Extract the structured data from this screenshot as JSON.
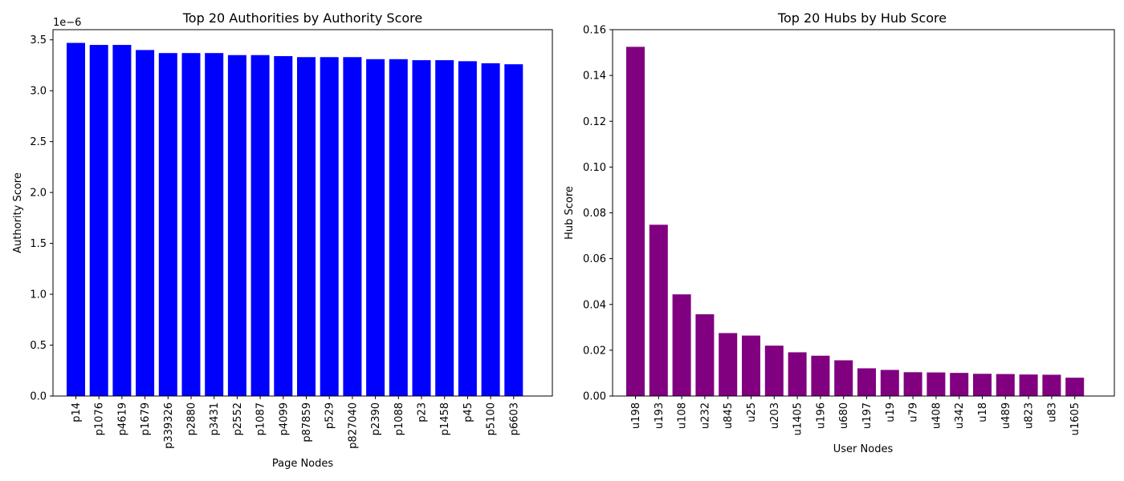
{
  "chart_data": [
    {
      "type": "bar",
      "title": "Top 20 Authorities by Authority Score",
      "xlabel": "Page Nodes",
      "ylabel": "Authority Score",
      "y_offset_label": "1e−6",
      "ylim": [
        0,
        3.6
      ],
      "yticks": [
        0.0,
        0.5,
        1.0,
        1.5,
        2.0,
        2.5,
        3.0,
        3.5
      ],
      "ytick_labels": [
        "0.0",
        "0.5",
        "1.0",
        "1.5",
        "2.0",
        "2.5",
        "3.0",
        "3.5"
      ],
      "color": "#0000ff",
      "categories": [
        "p14",
        "p1076",
        "p4619",
        "p1679",
        "p339326",
        "p2880",
        "p3431",
        "p2552",
        "p1087",
        "p4099",
        "p87859",
        "p529",
        "p827040",
        "p2390",
        "p1088",
        "p23",
        "p1458",
        "p45",
        "p5100",
        "p6603"
      ],
      "values": [
        3.47,
        3.45,
        3.45,
        3.4,
        3.37,
        3.37,
        3.37,
        3.35,
        3.35,
        3.34,
        3.33,
        3.33,
        3.33,
        3.31,
        3.31,
        3.3,
        3.3,
        3.29,
        3.27,
        3.26
      ],
      "grid": false
    },
    {
      "type": "bar",
      "title": "Top 20 Hubs by Hub Score",
      "xlabel": "User Nodes",
      "ylabel": "Hub Score",
      "ylim": [
        0,
        0.16
      ],
      "yticks": [
        0.0,
        0.02,
        0.04,
        0.06,
        0.08,
        0.1,
        0.12,
        0.14,
        0.16
      ],
      "ytick_labels": [
        "0.00",
        "0.02",
        "0.04",
        "0.06",
        "0.08",
        "0.10",
        "0.12",
        "0.14",
        "0.16"
      ],
      "color": "#800080",
      "categories": [
        "u198",
        "u193",
        "u108",
        "u232",
        "u845",
        "u25",
        "u203",
        "u1405",
        "u196",
        "u680",
        "u197",
        "u19",
        "u79",
        "u408",
        "u342",
        "u18",
        "u489",
        "u823",
        "u83",
        "u1605"
      ],
      "values": [
        0.1525,
        0.0748,
        0.0444,
        0.0357,
        0.0275,
        0.0264,
        0.022,
        0.0191,
        0.0176,
        0.0156,
        0.0121,
        0.0114,
        0.0104,
        0.0103,
        0.0101,
        0.0097,
        0.0096,
        0.0094,
        0.0093,
        0.008
      ],
      "grid": false
    }
  ]
}
